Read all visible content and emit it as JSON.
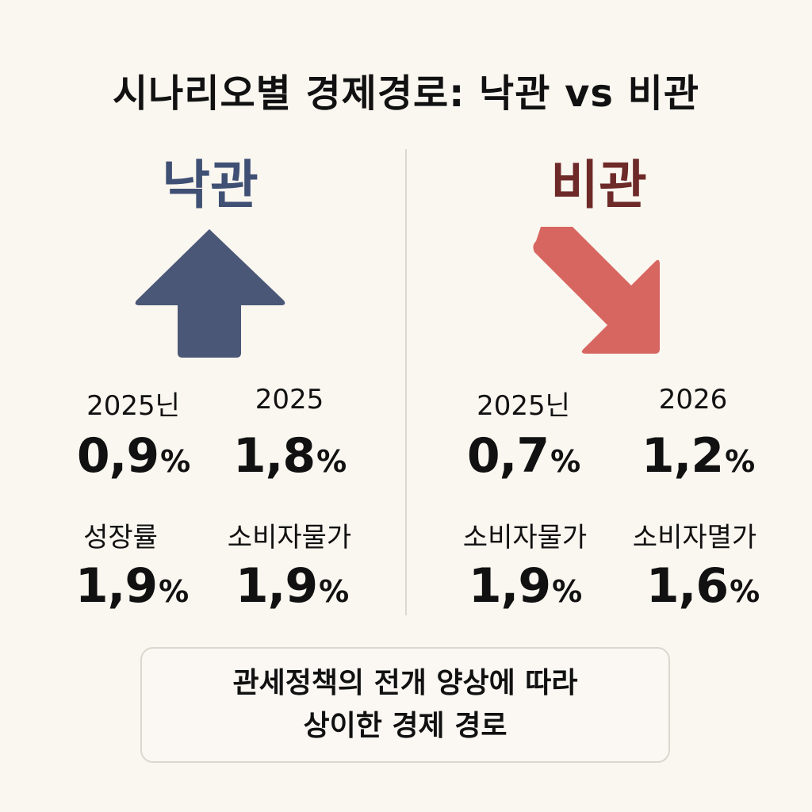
{
  "title": "시나리오별 경제경로: 낙관 vs 비관",
  "optimistic": {
    "label": "낙관",
    "color": "#3f5074",
    "arrow": "up-arrow-icon",
    "cells": [
      {
        "label": "2025닌",
        "value": "0,9",
        "unit": "%"
      },
      {
        "label": "2025",
        "value": "1,8",
        "unit": "%"
      },
      {
        "label": "성장률",
        "value": "1,9",
        "unit": "%"
      },
      {
        "label": "소비자물가",
        "value": "1,9",
        "unit": "%"
      }
    ]
  },
  "pessimistic": {
    "label": "비관",
    "color": "#6d2a28",
    "arrow": "down-right-arrow-icon",
    "arrow_color": "#d76661",
    "cells": [
      {
        "label": "2025닌",
        "value": "0,7",
        "unit": "%"
      },
      {
        "label": "2026",
        "value": "1,2",
        "unit": "%"
      },
      {
        "label": "소비자물가",
        "value": "1,9",
        "unit": "%"
      },
      {
        "label": "소비자멸가",
        "value": "1,6",
        "unit": "%"
      }
    ]
  },
  "footer": {
    "line1": "관세정책의 전개 양상에 따라",
    "line2": "상이한 경제 경로"
  }
}
